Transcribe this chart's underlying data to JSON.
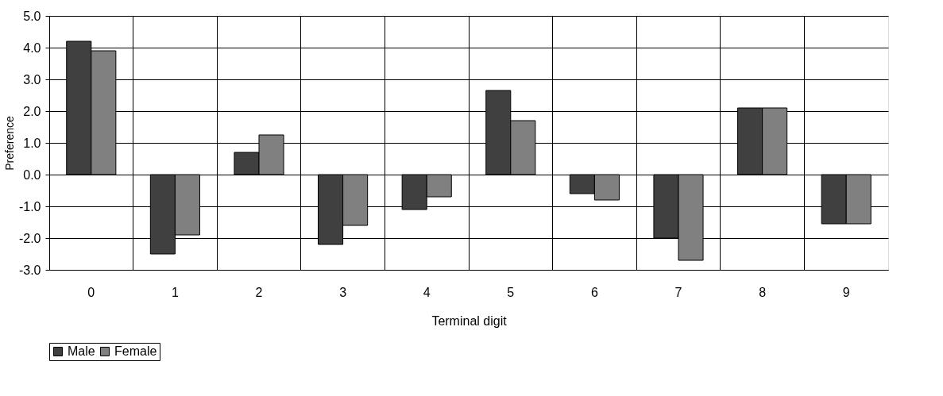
{
  "chart_data": {
    "type": "bar",
    "xlabel": "Terminal digit",
    "ylabel": "Preference",
    "categories": [
      "0",
      "1",
      "2",
      "3",
      "4",
      "5",
      "6",
      "7",
      "8",
      "9"
    ],
    "series": [
      {
        "name": "Male",
        "color": "#404040",
        "values": [
          4.2,
          -2.5,
          0.7,
          -2.2,
          -1.1,
          2.65,
          -0.6,
          -2.0,
          2.1,
          -1.55
        ]
      },
      {
        "name": "Female",
        "color": "#808080",
        "values": [
          3.9,
          -1.9,
          1.25,
          -1.6,
          -0.7,
          1.7,
          -0.8,
          -2.7,
          2.1,
          -1.55
        ]
      }
    ],
    "ylim": [
      -3.0,
      5.0
    ],
    "yticks": [
      {
        "value": -3,
        "label": "-3.0"
      },
      {
        "value": -2,
        "label": "-2.0"
      },
      {
        "value": -1,
        "label": "-1.0"
      },
      {
        "value": 0,
        "label": "0.0"
      },
      {
        "value": 1,
        "label": "1.0"
      },
      {
        "value": 2,
        "label": "2.0"
      },
      {
        "value": 3,
        "label": "3.0"
      },
      {
        "value": 4,
        "label": "4.0"
      },
      {
        "value": 5,
        "label": "5.0"
      }
    ],
    "grid": true,
    "legend": "bottom"
  }
}
